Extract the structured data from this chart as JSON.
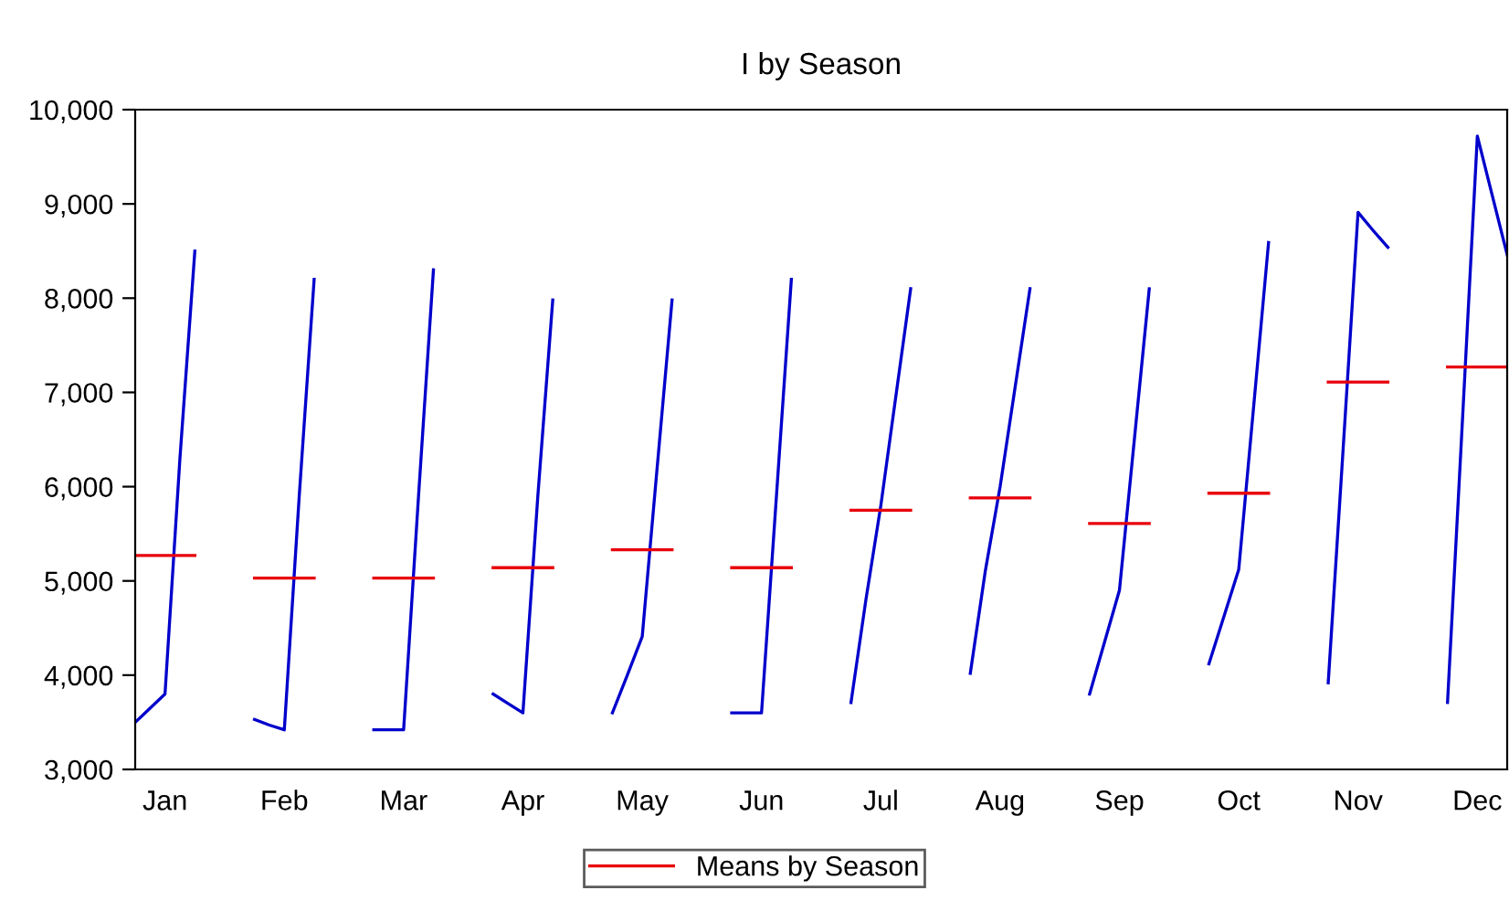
{
  "chart_data": {
    "type": "line",
    "title": "I by Season",
    "categories": [
      null,
      null,
      "Jan",
      null,
      null,
      null,
      null,
      null,
      null,
      null,
      "Feb",
      null,
      null,
      null,
      null,
      null,
      null,
      null,
      "Mar",
      null,
      null,
      null,
      null,
      null,
      null,
      null,
      "Apr",
      null,
      null,
      null,
      null,
      null,
      null,
      null,
      "May",
      null,
      null,
      null,
      null,
      null,
      null,
      null,
      "Jun",
      null,
      null,
      null,
      null,
      null,
      null,
      null,
      "Jul",
      null,
      null,
      null,
      null,
      null,
      null,
      null,
      "Aug",
      null,
      null,
      null,
      null,
      null,
      null,
      null,
      "Sep",
      null,
      null,
      null,
      null,
      null,
      null,
      null,
      "Oct",
      null,
      null,
      null,
      null,
      null,
      null,
      null,
      "Nov",
      null,
      null,
      null,
      null,
      null,
      null,
      null,
      "Dec",
      null,
      null
    ],
    "ylim": [
      3000,
      10000
    ],
    "yticks": [
      {
        "value": 3000,
        "label": "3,000"
      },
      {
        "value": 4000,
        "label": "4,000"
      },
      {
        "value": 5000,
        "label": "5,000"
      },
      {
        "value": 6000,
        "label": "6,000"
      },
      {
        "value": 7000,
        "label": "7,000"
      },
      {
        "value": 8000,
        "label": "8,000"
      },
      {
        "value": 9000,
        "label": "9,000"
      },
      {
        "value": 10000,
        "label": "10,000"
      }
    ],
    "grid": false,
    "legend": "bottom",
    "marker": "none",
    "line_style": "solid",
    "series": [
      {
        "color": "#0000cc",
        "values": [
          3500,
          3650,
          3800,
          6300,
          8500,
          null,
          null,
          null,
          3530,
          3470,
          3420,
          5900,
          8200,
          null,
          null,
          null,
          3420,
          3420,
          3420,
          5900,
          8300,
          null,
          null,
          null,
          3800,
          3700,
          3600,
          5900,
          7980,
          null,
          null,
          null,
          3600,
          4000,
          4410,
          6200,
          7980,
          null,
          null,
          null,
          3600,
          3600,
          3600,
          5900,
          8200,
          null,
          null,
          null,
          3710,
          4800,
          5800,
          6950,
          8100,
          null,
          null,
          null,
          4020,
          5100,
          6000,
          7050,
          8100,
          null,
          null,
          null,
          3800,
          4350,
          4900,
          6500,
          8100,
          null,
          null,
          null,
          4120,
          4620,
          5120,
          6850,
          8590,
          null,
          null,
          null,
          3920,
          6400,
          8910,
          8720,
          8540,
          null,
          null,
          null,
          3710,
          6700,
          9720,
          9090,
          8460
        ]
      },
      {
        "name": "Means by Season",
        "color": "#e8000b",
        "values": [
          5270,
          5270,
          5270,
          5270,
          5270,
          null,
          null,
          null,
          5030,
          5030,
          5030,
          5030,
          5030,
          null,
          null,
          null,
          5030,
          5030,
          5030,
          5030,
          5030,
          null,
          null,
          null,
          5140,
          5140,
          5140,
          5140,
          5140,
          null,
          null,
          null,
          5330,
          5330,
          5330,
          5330,
          5330,
          null,
          null,
          null,
          5140,
          5140,
          5140,
          5140,
          5140,
          null,
          null,
          null,
          5750,
          5750,
          5750,
          5750,
          5750,
          null,
          null,
          null,
          5880,
          5880,
          5880,
          5880,
          5880,
          null,
          null,
          null,
          5610,
          5610,
          5610,
          5610,
          5610,
          null,
          null,
          null,
          5930,
          5930,
          5930,
          5930,
          5930,
          null,
          null,
          null,
          7110,
          7110,
          7110,
          7110,
          7110,
          null,
          null,
          null,
          7270,
          7270,
          7270,
          7270,
          7270
        ]
      }
    ]
  }
}
